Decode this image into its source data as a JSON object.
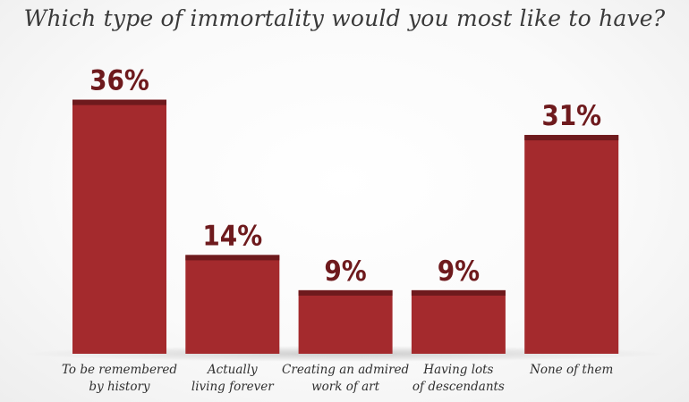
{
  "chart_data": {
    "type": "bar",
    "title": "Which type of immortality would you most like to have?",
    "categories": [
      [
        "To be remembered",
        "by history"
      ],
      [
        "Actually",
        "living forever"
      ],
      [
        "Creating an admired",
        "work of art"
      ],
      [
        "Having lots",
        "of descendants"
      ],
      [
        "None of them"
      ]
    ],
    "values": [
      36,
      14,
      9,
      9,
      31
    ],
    "value_labels": [
      "36%",
      "14%",
      "9%",
      "9%",
      "31%"
    ],
    "ylim": [
      0,
      40
    ],
    "grid": false,
    "legend": "none",
    "colors": {
      "bar": "#a42a2d",
      "bar_top": "#6e1a1d",
      "value_text": "#6e1a1d"
    }
  }
}
